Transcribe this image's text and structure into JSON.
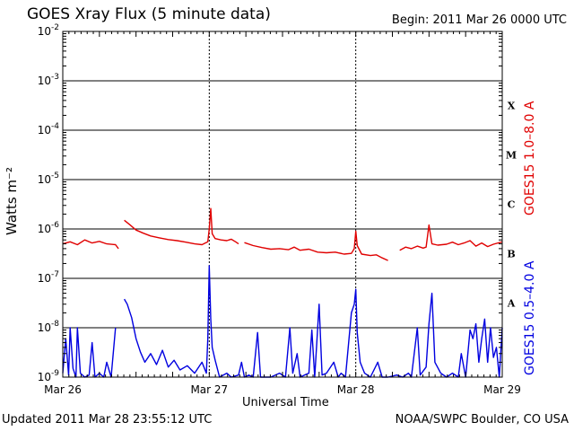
{
  "header": {
    "title": "GOES Xray Flux (5 minute data)",
    "begin": "Begin:  2011 Mar 26 0000 UTC"
  },
  "footer": {
    "updated": "Updated 2011 Mar 28 23:55:12 UTC",
    "credit": "NOAA/SWPC Boulder, CO USA"
  },
  "chart_data": {
    "type": "line",
    "xlabel": "Universal Time",
    "ylabel": "Watts m⁻²",
    "y_scale": "log",
    "ylim": [
      1e-09,
      0.01
    ],
    "xlim": [
      0,
      3
    ],
    "x_unit": "days since 2011 Mar 26 0000 UTC",
    "x_ticks": [
      {
        "value": 0,
        "label": "Mar 26"
      },
      {
        "value": 1,
        "label": "Mar 27"
      },
      {
        "value": 2,
        "label": "Mar 28"
      },
      {
        "value": 3,
        "label": "Mar 29"
      }
    ],
    "y_ticks": [
      {
        "exp": -2,
        "label": "10",
        "sup": "-2"
      },
      {
        "exp": -3,
        "label": "10",
        "sup": "-3"
      },
      {
        "exp": -4,
        "label": "10",
        "sup": "-4"
      },
      {
        "exp": -5,
        "label": "10",
        "sup": "-5"
      },
      {
        "exp": -6,
        "label": "10",
        "sup": "-6"
      },
      {
        "exp": -7,
        "label": "10",
        "sup": "-7"
      },
      {
        "exp": -8,
        "label": "10",
        "sup": "-8"
      },
      {
        "exp": -9,
        "label": "10",
        "sup": "-9"
      }
    ],
    "flare_classes": [
      {
        "label": "X",
        "exp": -4
      },
      {
        "label": "M",
        "exp": -5
      },
      {
        "label": "C",
        "exp": -6
      },
      {
        "label": "B",
        "exp": -7
      },
      {
        "label": "A",
        "exp": -8
      }
    ],
    "grid": true,
    "series": [
      {
        "name": "GOES15 1.0–8.0 A",
        "color": "#e00000",
        "segments": [
          [
            [
              0,
              5e-07
            ],
            [
              0.05,
              5.5e-07
            ],
            [
              0.1,
              4.8e-07
            ],
            [
              0.15,
              6e-07
            ],
            [
              0.2,
              5.2e-07
            ],
            [
              0.25,
              5.6e-07
            ],
            [
              0.3,
              5e-07
            ],
            [
              0.36,
              4.8e-07
            ],
            [
              0.38,
              4e-07
            ]
          ],
          [
            [
              0.42,
              1.5e-06
            ],
            [
              0.46,
              1.2e-06
            ],
            [
              0.5,
              9.5e-07
            ],
            [
              0.55,
              8.2e-07
            ],
            [
              0.6,
              7.2e-07
            ],
            [
              0.66,
              6.6e-07
            ],
            [
              0.72,
              6.1e-07
            ],
            [
              0.78,
              5.8e-07
            ],
            [
              0.84,
              5.4e-07
            ],
            [
              0.9,
              5e-07
            ],
            [
              0.95,
              4.8e-07
            ],
            [
              0.99,
              5.5e-07
            ],
            [
              1.0,
              1e-06
            ],
            [
              1.01,
              2.6e-06
            ],
            [
              1.02,
              8e-07
            ],
            [
              1.04,
              6.4e-07
            ],
            [
              1.08,
              6e-07
            ],
            [
              1.12,
              5.8e-07
            ],
            [
              1.15,
              6.2e-07
            ],
            [
              1.18,
              5.5e-07
            ],
            [
              1.2,
              5e-07
            ]
          ],
          [
            [
              1.24,
              5.3e-07
            ],
            [
              1.3,
              4.6e-07
            ],
            [
              1.36,
              4.2e-07
            ],
            [
              1.42,
              3.9e-07
            ],
            [
              1.48,
              4e-07
            ],
            [
              1.54,
              3.8e-07
            ],
            [
              1.58,
              4.3e-07
            ],
            [
              1.62,
              3.7e-07
            ],
            [
              1.68,
              3.9e-07
            ],
            [
              1.74,
              3.4e-07
            ],
            [
              1.8,
              3.3e-07
            ],
            [
              1.86,
              3.4e-07
            ],
            [
              1.92,
              3.1e-07
            ],
            [
              1.97,
              3.2e-07
            ],
            [
              1.99,
              4e-07
            ],
            [
              2.0,
              9e-07
            ],
            [
              2.01,
              4.6e-07
            ],
            [
              2.04,
              3.1e-07
            ],
            [
              2.1,
              2.9e-07
            ],
            [
              2.14,
              3e-07
            ],
            [
              2.18,
              2.6e-07
            ],
            [
              2.22,
              2.3e-07
            ]
          ],
          [
            [
              2.3,
              3.7e-07
            ],
            [
              2.34,
              4.3e-07
            ],
            [
              2.38,
              4e-07
            ],
            [
              2.42,
              4.5e-07
            ],
            [
              2.46,
              4.1e-07
            ],
            [
              2.48,
              4.3e-07
            ],
            [
              2.5,
              1.2e-06
            ],
            [
              2.52,
              5e-07
            ],
            [
              2.56,
              4.7e-07
            ],
            [
              2.62,
              4.9e-07
            ],
            [
              2.66,
              5.4e-07
            ],
            [
              2.7,
              4.8e-07
            ],
            [
              2.74,
              5.2e-07
            ],
            [
              2.78,
              5.8e-07
            ],
            [
              2.82,
              4.5e-07
            ],
            [
              2.86,
              5.2e-07
            ],
            [
              2.9,
              4.4e-07
            ],
            [
              2.94,
              4.9e-07
            ],
            [
              3.0,
              5.5e-07
            ]
          ]
        ]
      },
      {
        "name": "GOES15 0.5–4.0 A",
        "color": "#0000e0",
        "segments": [
          [
            [
              0,
              1.2e-09
            ],
            [
              0.02,
              6e-09
            ],
            [
              0.04,
              1.1e-09
            ],
            [
              0.05,
              1e-08
            ],
            [
              0.07,
              1.5e-09
            ],
            [
              0.09,
              1e-09
            ],
            [
              0.1,
              1e-08
            ],
            [
              0.12,
              1.2e-09
            ],
            [
              0.15,
              1e-09
            ],
            [
              0.18,
              1.1e-09
            ],
            [
              0.2,
              5e-09
            ],
            [
              0.22,
              1e-09
            ],
            [
              0.25,
              1.2e-09
            ],
            [
              0.28,
              1e-09
            ],
            [
              0.3,
              2e-09
            ],
            [
              0.33,
              1e-09
            ],
            [
              0.36,
              1e-08
            ]
          ],
          [
            [
              0.42,
              3.8e-08
            ],
            [
              0.44,
              3e-08
            ],
            [
              0.47,
              1.6e-08
            ],
            [
              0.5,
              6e-09
            ],
            [
              0.53,
              3.2e-09
            ],
            [
              0.56,
              2e-09
            ],
            [
              0.6,
              3e-09
            ],
            [
              0.64,
              1.8e-09
            ],
            [
              0.68,
              3.5e-09
            ],
            [
              0.72,
              1.6e-09
            ],
            [
              0.76,
              2.2e-09
            ],
            [
              0.8,
              1.4e-09
            ],
            [
              0.85,
              1.7e-09
            ],
            [
              0.9,
              1.2e-09
            ],
            [
              0.95,
              2e-09
            ],
            [
              0.98,
              1.2e-09
            ],
            [
              0.99,
              6e-09
            ],
            [
              1.0,
              1.8e-07
            ],
            [
              1.01,
              1.5e-08
            ],
            [
              1.02,
              4e-09
            ],
            [
              1.04,
              2.2e-09
            ],
            [
              1.07,
              1e-09
            ],
            [
              1.12,
              1.2e-09
            ],
            [
              1.15,
              1e-09
            ],
            [
              1.2,
              1.1e-09
            ],
            [
              1.22,
              2e-09
            ],
            [
              1.24,
              1e-09
            ],
            [
              1.27,
              1.1e-09
            ],
            [
              1.3,
              1e-09
            ],
            [
              1.33,
              8e-09
            ],
            [
              1.35,
              1e-09
            ],
            [
              1.38,
              1e-09
            ],
            [
              1.42,
              1e-09
            ],
            [
              1.48,
              1.2e-09
            ],
            [
              1.52,
              1e-09
            ],
            [
              1.55,
              1e-08
            ],
            [
              1.57,
              1.2e-09
            ],
            [
              1.6,
              3e-09
            ],
            [
              1.62,
              1e-09
            ],
            [
              1.65,
              1.1e-09
            ],
            [
              1.68,
              1.2e-09
            ],
            [
              1.7,
              9e-09
            ],
            [
              1.72,
              1e-09
            ],
            [
              1.75,
              3e-08
            ],
            [
              1.77,
              1.1e-09
            ],
            [
              1.8,
              1.2e-09
            ],
            [
              1.85,
              2e-09
            ],
            [
              1.88,
              1e-09
            ],
            [
              1.9,
              1.2e-09
            ],
            [
              1.93,
              1e-09
            ],
            [
              1.97,
              2e-08
            ],
            [
              1.99,
              3e-08
            ],
            [
              2.0,
              6e-08
            ],
            [
              2.01,
              8e-09
            ],
            [
              2.03,
              2e-09
            ],
            [
              2.06,
              1.2e-09
            ],
            [
              2.1,
              1e-09
            ],
            [
              2.15,
              2e-09
            ],
            [
              2.18,
              1e-09
            ],
            [
              2.22,
              1e-09
            ],
            [
              2.28,
              1.1e-09
            ],
            [
              2.32,
              1e-09
            ],
            [
              2.36,
              1.2e-09
            ],
            [
              2.38,
              1e-09
            ],
            [
              2.42,
              1e-08
            ],
            [
              2.44,
              1.1e-09
            ],
            [
              2.48,
              1.6e-09
            ],
            [
              2.5,
              1.2e-08
            ],
            [
              2.52,
              5e-08
            ],
            [
              2.54,
              2e-09
            ],
            [
              2.58,
              1.2e-09
            ],
            [
              2.62,
              1e-09
            ],
            [
              2.66,
              1.2e-09
            ],
            [
              2.7,
              1e-09
            ],
            [
              2.72,
              3e-09
            ],
            [
              2.75,
              1e-09
            ],
            [
              2.78,
              9e-09
            ],
            [
              2.8,
              6e-09
            ],
            [
              2.82,
              1.2e-08
            ],
            [
              2.84,
              2e-09
            ],
            [
              2.86,
              6e-09
            ],
            [
              2.88,
              1.5e-08
            ],
            [
              2.9,
              2e-09
            ],
            [
              2.92,
              1e-08
            ],
            [
              2.94,
              2.5e-09
            ],
            [
              2.96,
              4e-09
            ],
            [
              2.98,
              1e-09
            ],
            [
              3.0,
              1e-08
            ]
          ]
        ]
      }
    ]
  }
}
